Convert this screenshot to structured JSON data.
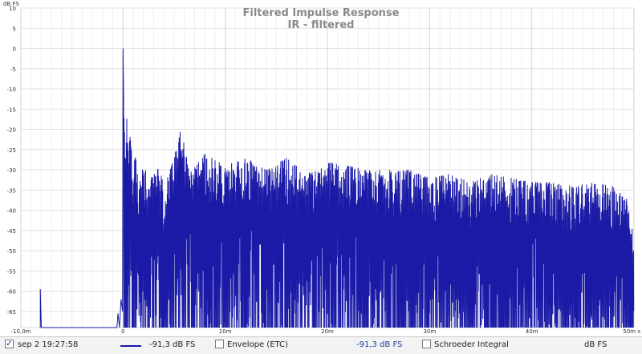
{
  "chart_data": {
    "type": "line",
    "title": "Filtered Impulse Response",
    "subtitle": "IR - filtered",
    "ylabel": "dB FS",
    "xlabel": "",
    "xlim": [
      -10,
      50
    ],
    "ylim": [
      -69,
      10
    ],
    "y_ticks": [
      10,
      5,
      0,
      -5,
      -10,
      -15,
      -20,
      -25,
      -30,
      -35,
      -40,
      -45,
      -50,
      -55,
      -60,
      -65
    ],
    "x_tick_labels": [
      {
        "value": -10,
        "label": "-10,0m"
      },
      {
        "value": 0,
        "label": "0"
      },
      {
        "value": 10,
        "label": "10m"
      },
      {
        "value": 20,
        "label": "20m"
      },
      {
        "value": 30,
        "label": "30m"
      },
      {
        "value": 40,
        "label": "40m"
      },
      {
        "value": 50,
        "label": "50m s"
      }
    ],
    "grid": true,
    "series": [
      {
        "name": "sep 2 19:27:58",
        "color": "#1a1aa6",
        "points": [
          [
            -8.1,
            -69
          ],
          [
            -8.1,
            -59.5
          ],
          [
            -8.0,
            -69
          ],
          [
            -0.6,
            -69
          ],
          [
            -0.5,
            -65.5
          ],
          [
            -0.35,
            -69
          ],
          [
            -0.2,
            -62
          ],
          [
            -0.05,
            -65
          ],
          [
            0.0,
            0
          ],
          [
            0.1,
            -12
          ],
          [
            0.25,
            -21
          ],
          [
            0.4,
            -15
          ],
          [
            0.55,
            -28
          ],
          [
            0.7,
            -18
          ],
          [
            0.85,
            -25
          ],
          [
            1.0,
            -32
          ],
          [
            1.15,
            -27
          ],
          [
            1.3,
            -24
          ],
          [
            1.5,
            -38
          ],
          [
            1.7,
            -30
          ],
          [
            2.0,
            -28
          ],
          [
            2.5,
            -33
          ],
          [
            3.0,
            -31
          ],
          [
            3.5,
            -29
          ],
          [
            4.0,
            -34
          ],
          [
            5.0,
            -27
          ],
          [
            5.7,
            -19
          ],
          [
            6.5,
            -31
          ],
          [
            8.0,
            -26
          ],
          [
            10.0,
            -29
          ],
          [
            12.0,
            -27
          ],
          [
            14.0,
            -30
          ],
          [
            16.0,
            -27
          ],
          [
            18.0,
            -31
          ],
          [
            20.0,
            -28
          ],
          [
            22.0,
            -29
          ],
          [
            24.0,
            -30
          ],
          [
            26.0,
            -30
          ],
          [
            28.0,
            -30
          ],
          [
            30.0,
            -32
          ],
          [
            32.0,
            -31
          ],
          [
            34.0,
            -33
          ],
          [
            36.0,
            -31
          ],
          [
            38.0,
            -32
          ],
          [
            40.0,
            -33
          ],
          [
            42.0,
            -33
          ],
          [
            44.0,
            -34
          ],
          [
            46.0,
            -33
          ],
          [
            48.0,
            -34
          ],
          [
            49.5,
            -37
          ],
          [
            50.0,
            -48
          ]
        ]
      }
    ]
  },
  "legend": {
    "checkbox_check": "✓",
    "series_label": "sep 2 19:27:58",
    "series_value": "-91,3 dB FS",
    "envelope_label": "Envelope (ETC)",
    "envelope_value": "-91,3 dB FS",
    "schroeder_label": "Schroeder Integral",
    "schroeder_value": "dB FS"
  }
}
